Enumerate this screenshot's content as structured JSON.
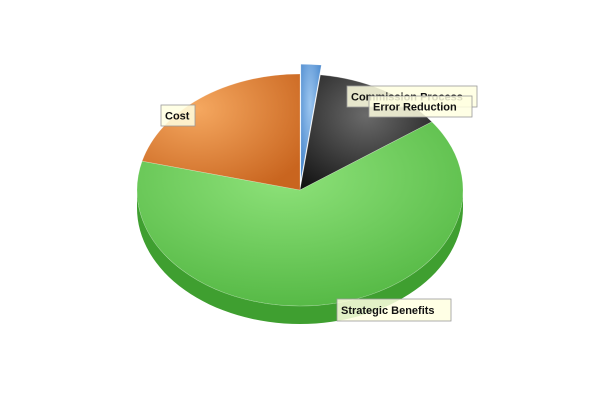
{
  "chart_data": {
    "type": "pie",
    "title": "",
    "style": "3d-exploded",
    "slices": [
      {
        "label": "Commission Process",
        "value": 2.0,
        "color": "#4a8fd6",
        "exploded": true
      },
      {
        "label": "Error Reduction",
        "value": 13.0,
        "color": "#1c1c1c",
        "exploded": false
      },
      {
        "label": "Strategic Benefits",
        "value": 64.0,
        "color": "#66cc55",
        "exploded": false
      },
      {
        "label": "Cost",
        "value": 21.0,
        "color": "#e07a33",
        "exploded": false
      }
    ]
  }
}
